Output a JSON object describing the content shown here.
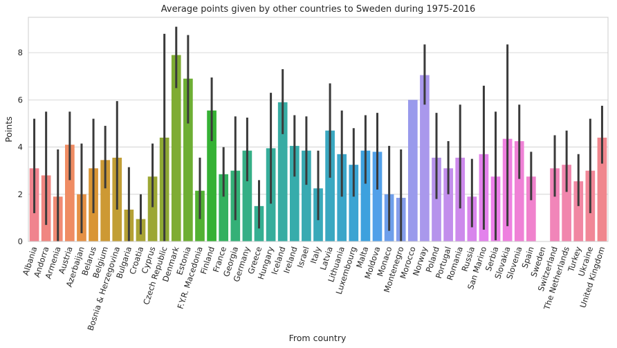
{
  "chart_data": {
    "type": "bar",
    "title": "Average points given by other countries to Sweden during 1975-2016",
    "xlabel": "From country",
    "ylabel": "Points",
    "ylim": [
      0,
      9.5
    ],
    "yticks": [
      0,
      2,
      4,
      6,
      8
    ],
    "grid": true,
    "categories": [
      "Albania",
      "Andorra",
      "Armenia",
      "Austria",
      "Azerbaijan",
      "Belarus",
      "Belgium",
      "Bosnia & Herzegovina",
      "Bulgaria",
      "Croatia",
      "Cyprus",
      "Czech Republic",
      "Denmark",
      "Estonia",
      "F.Y.R. Macedonia",
      "Finland",
      "France",
      "Georgia",
      "Germany",
      "Greece",
      "Hungary",
      "Iceland",
      "Ireland",
      "Israel",
      "Italy",
      "Latvia",
      "Lithuania",
      "Luxembourg",
      "Malta",
      "Moldova",
      "Monaco",
      "Montenegro",
      "Morocco",
      "Norway",
      "Poland",
      "Portugal",
      "Romania",
      "Russia",
      "San Marino",
      "Serbia",
      "Slovakia",
      "Slovenia",
      "Spain",
      "Sweden",
      "Switzerland",
      "The Netherlands",
      "Turkey",
      "Ukraine",
      "United Kingdom"
    ],
    "values": [
      3.1,
      2.8,
      1.9,
      4.1,
      2.0,
      3.1,
      3.45,
      3.55,
      1.35,
      0.95,
      2.75,
      4.4,
      7.9,
      6.9,
      2.15,
      5.55,
      2.85,
      3.0,
      3.85,
      1.5,
      3.95,
      5.9,
      4.05,
      3.85,
      2.25,
      4.7,
      3.7,
      3.25,
      3.85,
      3.8,
      2.0,
      1.85,
      6.0,
      7.05,
      3.55,
      3.1,
      3.55,
      1.9,
      3.7,
      2.75,
      4.35,
      4.25,
      2.75,
      0,
      3.1,
      3.25,
      2.55,
      3.0,
      4.4
    ],
    "ci_low": [
      1.2,
      0.7,
      0.0,
      2.6,
      0.35,
      1.2,
      2.25,
      1.35,
      0.0,
      0.3,
      1.45,
      0.0,
      6.5,
      5.0,
      0.95,
      4.25,
      1.9,
      0.9,
      2.55,
      0.55,
      1.6,
      4.55,
      2.75,
      2.4,
      0.9,
      2.7,
      1.9,
      1.9,
      2.45,
      2.2,
      0.45,
      0.0,
      6.0,
      5.8,
      1.8,
      2.0,
      1.4,
      0.6,
      0.5,
      0.05,
      0.65,
      2.65,
      1.75,
      0,
      1.9,
      2.1,
      1.5,
      1.2,
      3.3
    ],
    "ci_high": [
      5.2,
      5.5,
      3.9,
      5.5,
      4.15,
      5.2,
      4.9,
      5.95,
      3.15,
      2.0,
      4.15,
      8.8,
      9.1,
      8.75,
      3.55,
      6.95,
      4.0,
      5.3,
      5.25,
      2.6,
      6.3,
      7.3,
      5.35,
      5.3,
      3.85,
      6.7,
      5.55,
      4.8,
      5.35,
      5.45,
      4.05,
      3.9,
      6.0,
      8.35,
      5.45,
      4.25,
      5.8,
      3.5,
      6.6,
      5.5,
      8.35,
      5.8,
      3.8,
      0,
      4.5,
      4.7,
      3.7,
      5.2,
      5.75
    ],
    "colors": [
      "#f0838e",
      "#f08681",
      "#f08a73",
      "#ef8c63",
      "#e59145",
      "#d99534",
      "#cd9934",
      "#c19e35",
      "#b5a135",
      "#a8a435",
      "#9ca734",
      "#8ea934",
      "#7fac33",
      "#6dae33",
      "#52b133",
      "#35b134",
      "#33b15f",
      "#34b077",
      "#35af86",
      "#35af92",
      "#36ad9b",
      "#37aca3",
      "#37acab",
      "#38aab2",
      "#39a9b9",
      "#3aa8c1",
      "#3ba6c9",
      "#3ca4d2",
      "#3da1de",
      "#51a0e9",
      "#6e9feb",
      "#859deb",
      "#999aec",
      "#a998ec",
      "#b693ec",
      "#c28eec",
      "#cd8aec",
      "#d885ec",
      "#e382ec",
      "#eb80e9",
      "#ee80df",
      "#ef81d6",
      "#f082cd",
      "#f184c3",
      "#f185b9",
      "#f186ad",
      "#f187a2",
      "#f18797",
      "#f0868d"
    ]
  }
}
